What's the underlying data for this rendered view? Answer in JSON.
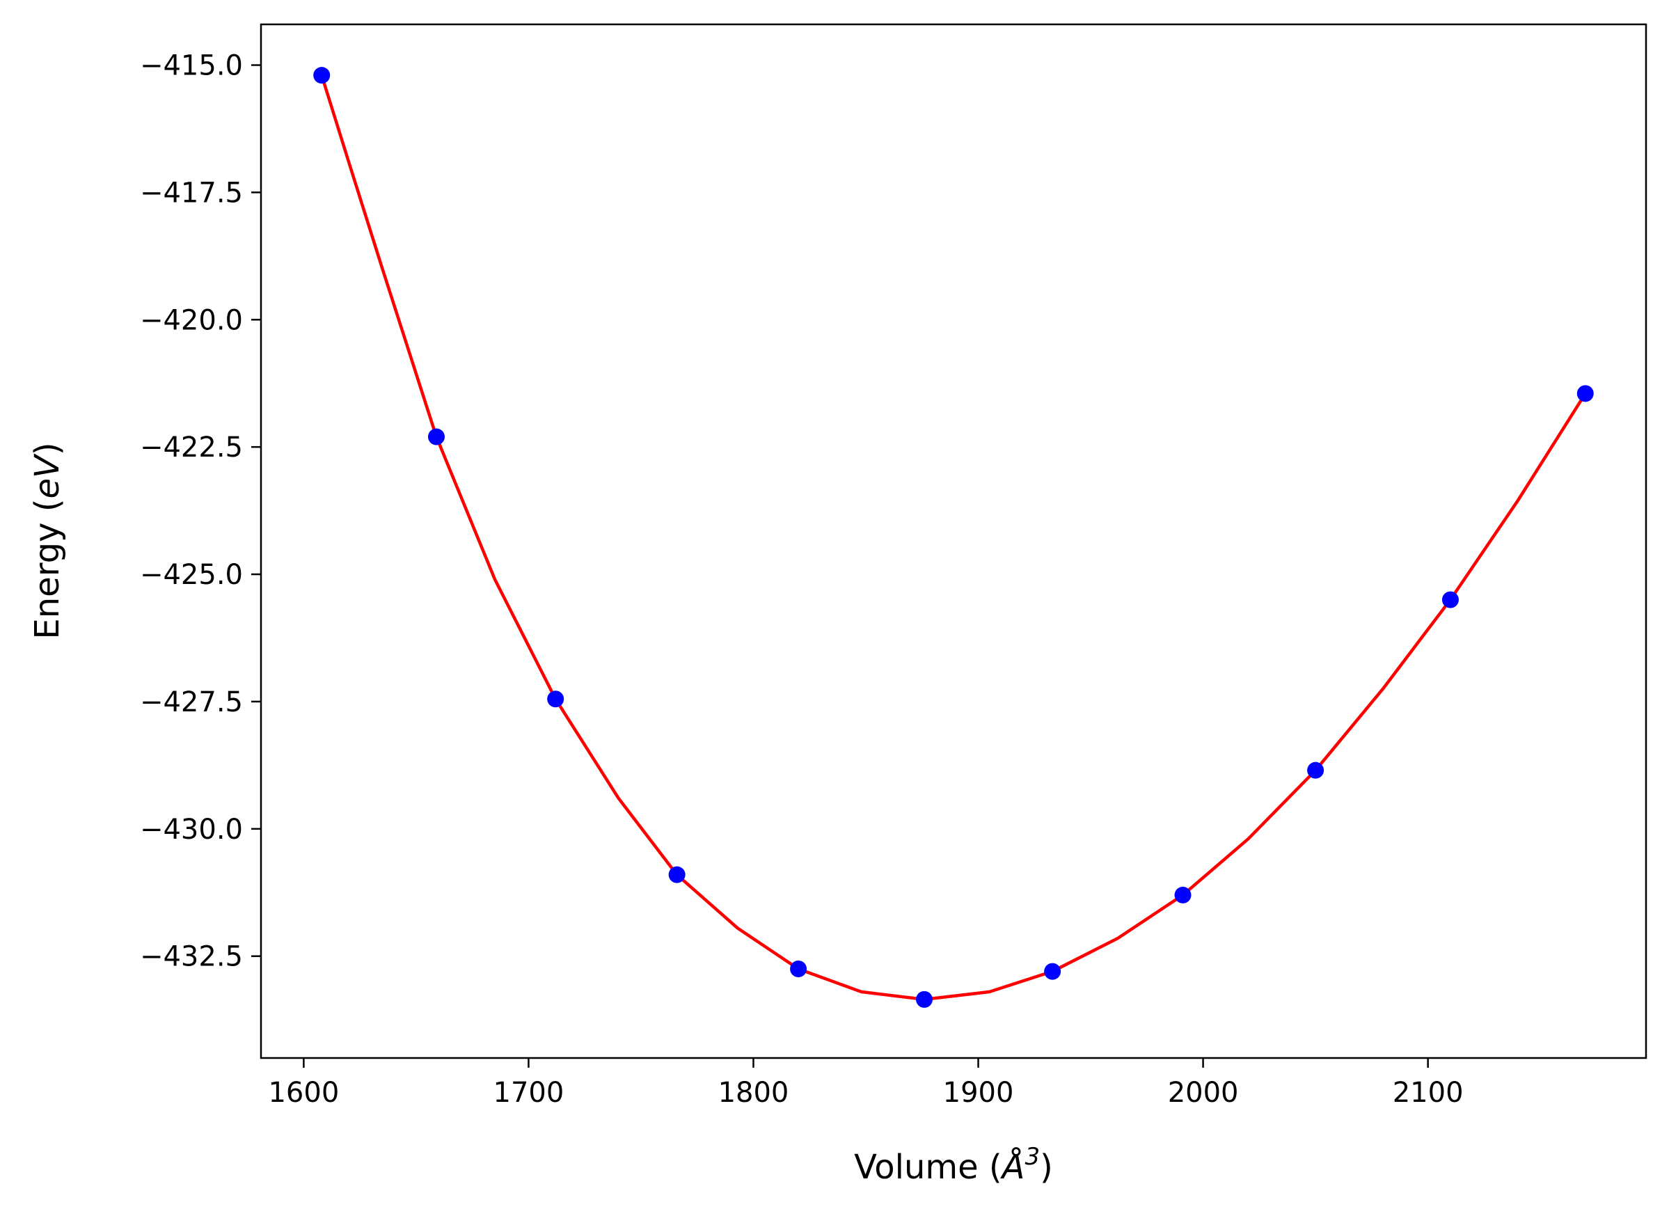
{
  "chart_data": {
    "type": "scatter",
    "xlabel": {
      "prefix": "Volume (",
      "symbol": "Å",
      "superscript": "3",
      "suffix": ")"
    },
    "ylabel": {
      "prefix": "Energy (",
      "symbol": "eV",
      "suffix": ")"
    },
    "xlim": [
      1581,
      2197
    ],
    "ylim": [
      -434.5,
      -414.2
    ],
    "x_ticks": [
      1600,
      1700,
      1800,
      1900,
      2000,
      2100
    ],
    "x_tick_labels": [
      "1600",
      "1700",
      "1800",
      "1900",
      "2000",
      "2100"
    ],
    "y_ticks": [
      -415.0,
      -417.5,
      -420.0,
      -422.5,
      -425.0,
      -427.5,
      -430.0,
      -432.5
    ],
    "y_tick_labels": [
      "−415.0",
      "−417.5",
      "−420.0",
      "−422.5",
      "−425.0",
      "−427.5",
      "−430.0",
      "−432.5"
    ],
    "grid": false,
    "legend": "none",
    "points": {
      "color": "#0000ff",
      "x": [
        1608,
        1659,
        1712,
        1766,
        1820,
        1876,
        1933,
        1991,
        2050,
        2110,
        2170
      ],
      "y": [
        -415.2,
        -422.3,
        -427.45,
        -430.9,
        -432.75,
        -433.35,
        -432.8,
        -431.3,
        -428.85,
        -425.5,
        -421.45
      ]
    },
    "fit_curve": {
      "color": "#ff0000",
      "x": [
        1608,
        1620,
        1635,
        1659,
        1685,
        1712,
        1740,
        1766,
        1793,
        1820,
        1848,
        1876,
        1905,
        1933,
        1962,
        1991,
        2020,
        2050,
        2080,
        2110,
        2140,
        2170
      ],
      "y": [
        -415.2,
        -416.9,
        -419.0,
        -422.3,
        -425.1,
        -427.45,
        -429.4,
        -430.9,
        -431.95,
        -432.75,
        -433.2,
        -433.35,
        -433.2,
        -432.8,
        -432.15,
        -431.3,
        -430.2,
        -428.85,
        -427.25,
        -425.5,
        -423.55,
        -421.45
      ]
    }
  }
}
